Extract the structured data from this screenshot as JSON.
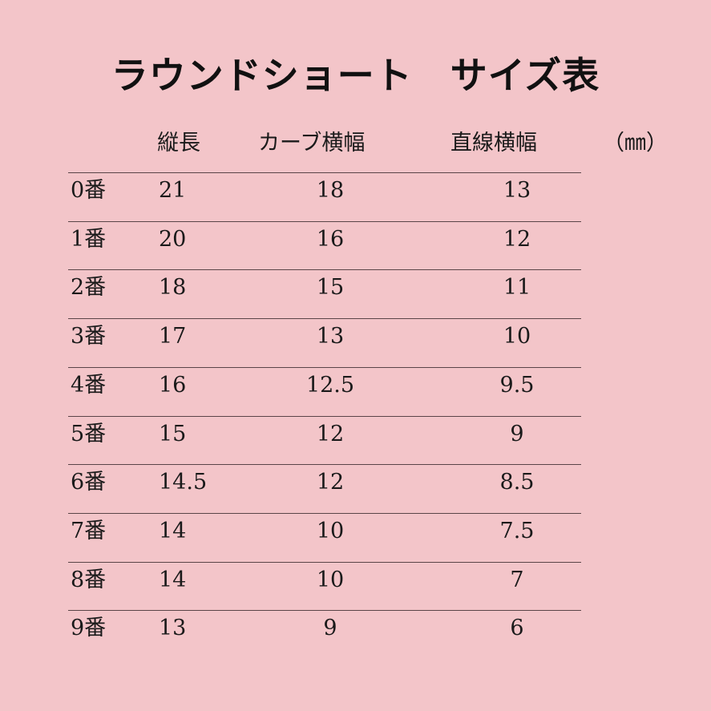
{
  "title": "ラウンドショート　サイズ表",
  "header": {
    "length": "縦長",
    "curve_width": "カーブ横幅",
    "straight_width": "直線横幅",
    "unit": "（㎜）"
  },
  "rows": [
    {
      "size": "0番",
      "length": "21",
      "curve_width": "18",
      "straight_width": "13"
    },
    {
      "size": "1番",
      "length": "20",
      "curve_width": "16",
      "straight_width": "12"
    },
    {
      "size": "2番",
      "length": "18",
      "curve_width": "15",
      "straight_width": "11"
    },
    {
      "size": "3番",
      "length": "17",
      "curve_width": "13",
      "straight_width": "10"
    },
    {
      "size": "4番",
      "length": "16",
      "curve_width": "12.5",
      "straight_width": "9.5"
    },
    {
      "size": "5番",
      "length": "15",
      "curve_width": "12",
      "straight_width": "9"
    },
    {
      "size": "6番",
      "length": "14.5",
      "curve_width": "12",
      "straight_width": "8.5"
    },
    {
      "size": "7番",
      "length": "14",
      "curve_width": "10",
      "straight_width": "7.5"
    },
    {
      "size": "8番",
      "length": "14",
      "curve_width": "10",
      "straight_width": "7"
    },
    {
      "size": "9番",
      "length": "13",
      "curve_width": "9",
      "straight_width": "6"
    }
  ],
  "colors": {
    "background": "#f3c5c9",
    "text": "#1a1a1a",
    "rule": "#5a4548"
  }
}
